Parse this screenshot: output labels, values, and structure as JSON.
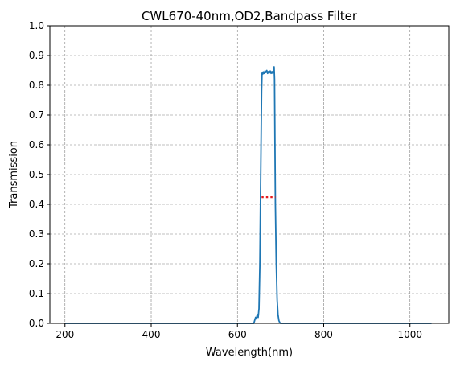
{
  "chart_data": {
    "type": "line",
    "title": "CWL670-40nm,OD2,Bandpass Filter",
    "xlabel": "Wavelength(nm)",
    "ylabel": "Transmission",
    "xlim": [
      165,
      1090
    ],
    "ylim": [
      0,
      1.0
    ],
    "xticks": [
      200,
      400,
      600,
      800,
      1000
    ],
    "yticks": [
      0,
      0.1,
      0.2,
      0.3,
      0.4,
      0.5,
      0.6,
      0.7,
      0.8,
      0.9,
      1.0
    ],
    "xtick_labels": [
      "200",
      "400",
      "600",
      "800",
      "1000"
    ],
    "ytick_labels": [
      "0.0",
      "0.1",
      "0.2",
      "0.3",
      "0.4",
      "0.5",
      "0.6",
      "0.7",
      "0.8",
      "0.9",
      "1.0"
    ],
    "grid": true,
    "series": [
      {
        "style": "solid",
        "color": "#1f77b4",
        "x": [
          200,
          630,
          638,
          640,
          642,
          644,
          646,
          648,
          650,
          652,
          654,
          656,
          657,
          658,
          659,
          660,
          662,
          664,
          666,
          668,
          670,
          672,
          674,
          676,
          678,
          680,
          682,
          684,
          685,
          686,
          687,
          688,
          690,
          692,
          694,
          696,
          698,
          700,
          710,
          1050
        ],
        "y": [
          0,
          0,
          0,
          0.01,
          0.02,
          0.015,
          0.03,
          0.02,
          0.05,
          0.2,
          0.5,
          0.78,
          0.84,
          0.842,
          0.838,
          0.845,
          0.84,
          0.848,
          0.843,
          0.85,
          0.84,
          0.846,
          0.842,
          0.848,
          0.84,
          0.846,
          0.84,
          0.85,
          0.862,
          0.82,
          0.6,
          0.4,
          0.2,
          0.08,
          0.03,
          0.01,
          0.003,
          0,
          0,
          0
        ]
      },
      {
        "style": "dotted",
        "color": "#e41a1c",
        "x": [
          656,
          688
        ],
        "y": [
          0.424,
          0.424
        ]
      }
    ]
  }
}
